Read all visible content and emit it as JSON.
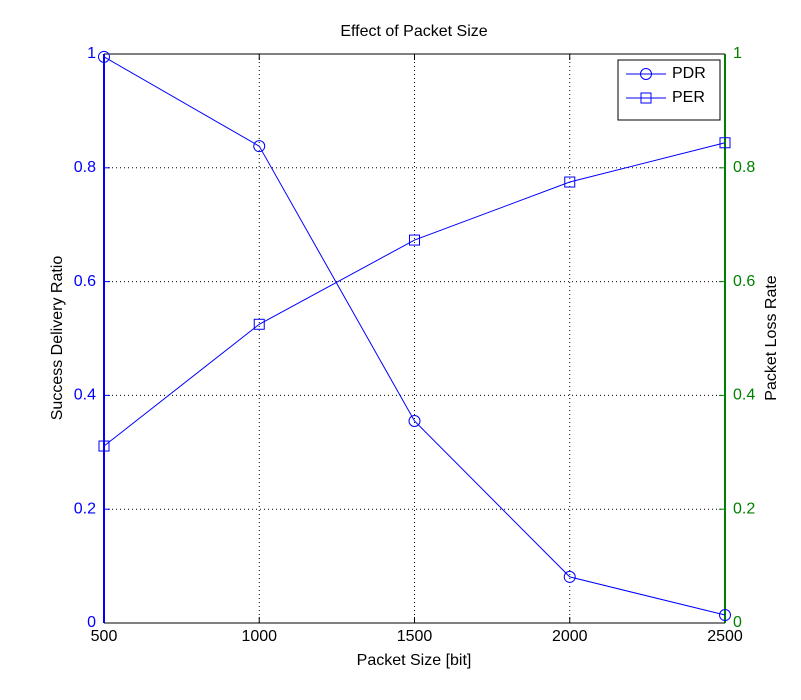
{
  "chart_data": {
    "type": "line",
    "title": "Effect of Packet Size",
    "x_label": "Packet Size [bit]",
    "y_label": "Success Delivery Ratio",
    "y2_label": "Packet Loss Rate",
    "x": [
      500,
      1000,
      1500,
      2000,
      2500
    ],
    "series": [
      {
        "name": "PDR",
        "color": "#0000ff",
        "marker": "circle",
        "values": [
          0.995,
          0.838,
          0.355,
          0.081,
          0.014
        ]
      },
      {
        "name": "PER",
        "color": "#0000ff",
        "marker": "square",
        "axis": "y2",
        "values": [
          0.311,
          0.525,
          0.673,
          0.775,
          0.844
        ]
      }
    ],
    "xlim": [
      500,
      2500
    ],
    "xticks": [
      500,
      1000,
      1500,
      2000,
      2500
    ],
    "ylim": [
      0,
      1
    ],
    "yticks": [
      0,
      0.2,
      0.4,
      0.6,
      0.8,
      1
    ],
    "y2lim": [
      0,
      1
    ],
    "y2ticks": [
      0,
      0.2,
      0.4,
      0.6,
      0.8,
      1
    ],
    "y_axis_color": "#0000ff",
    "y2_axis_color": "#008000",
    "grid": true,
    "legend_position": "upper-right"
  }
}
